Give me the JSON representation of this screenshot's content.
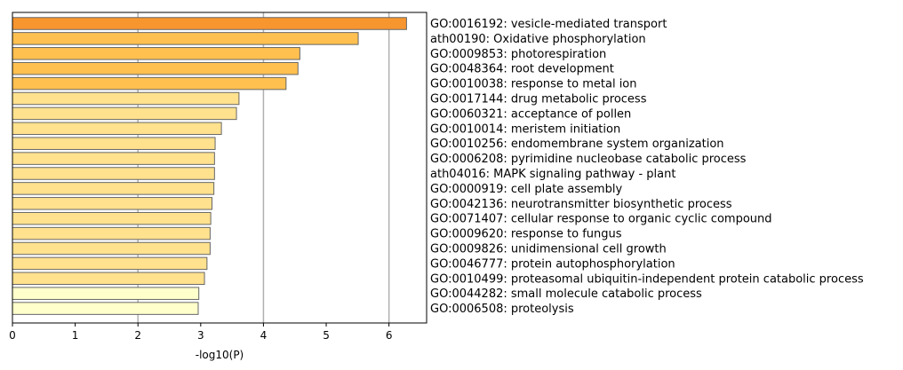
{
  "chart_data": {
    "type": "bar",
    "orientation": "horizontal",
    "xlabel": "-log10(P)",
    "xlim": [
      0,
      6.6
    ],
    "xticks": [
      0,
      1,
      2,
      3,
      4,
      5,
      6
    ],
    "grid": "vertical lines at x = 2, 4, 6",
    "legend": "none",
    "label_position": "right of plot",
    "categories": [
      "GO:0016192: vesicle-mediated transport",
      "ath00190: Oxidative phosphorylation",
      "GO:0009853: photorespiration",
      "GO:0048364: root development",
      "GO:0010038: response to metal ion",
      "GO:0017144: drug metabolic process",
      "GO:0060321: acceptance of pollen",
      "GO:0010014: meristem initiation",
      "GO:0010256: endomembrane system organization",
      "GO:0006208: pyrimidine nucleobase catabolic process",
      "ath04016: MAPK signaling pathway - plant",
      "GO:0000919: cell plate assembly",
      "GO:0042136: neurotransmitter biosynthetic process",
      "GO:0071407: cellular response to organic cyclic compound",
      "GO:0009620: response to fungus",
      "GO:0009826: unidimensional cell growth",
      "GO:0046777: protein autophosphorylation",
      "GO:0010499: proteasomal ubiquitin-independent protein catabolic process",
      "GO:0044282: small molecule catabolic process",
      "GO:0006508: proteolysis"
    ],
    "values": [
      6.28,
      5.51,
      4.58,
      4.55,
      4.36,
      3.61,
      3.57,
      3.33,
      3.23,
      3.22,
      3.22,
      3.21,
      3.18,
      3.16,
      3.15,
      3.15,
      3.1,
      3.06,
      2.97,
      2.96
    ],
    "bar_colors": [
      "#F7952E",
      "#FFC04F",
      "#FFC04F",
      "#FFC04F",
      "#FFC04F",
      "#FFE18E",
      "#FFE18E",
      "#FFE18E",
      "#FFE18E",
      "#FFE18E",
      "#FFE18E",
      "#FFE18E",
      "#FFE18E",
      "#FFE18E",
      "#FFE18E",
      "#FFE18E",
      "#FFE18E",
      "#FFE18E",
      "#FFFFCC",
      "#FFFFCC"
    ],
    "bar_edge_color": "#666666",
    "grid_color": "#B0B0B0"
  }
}
